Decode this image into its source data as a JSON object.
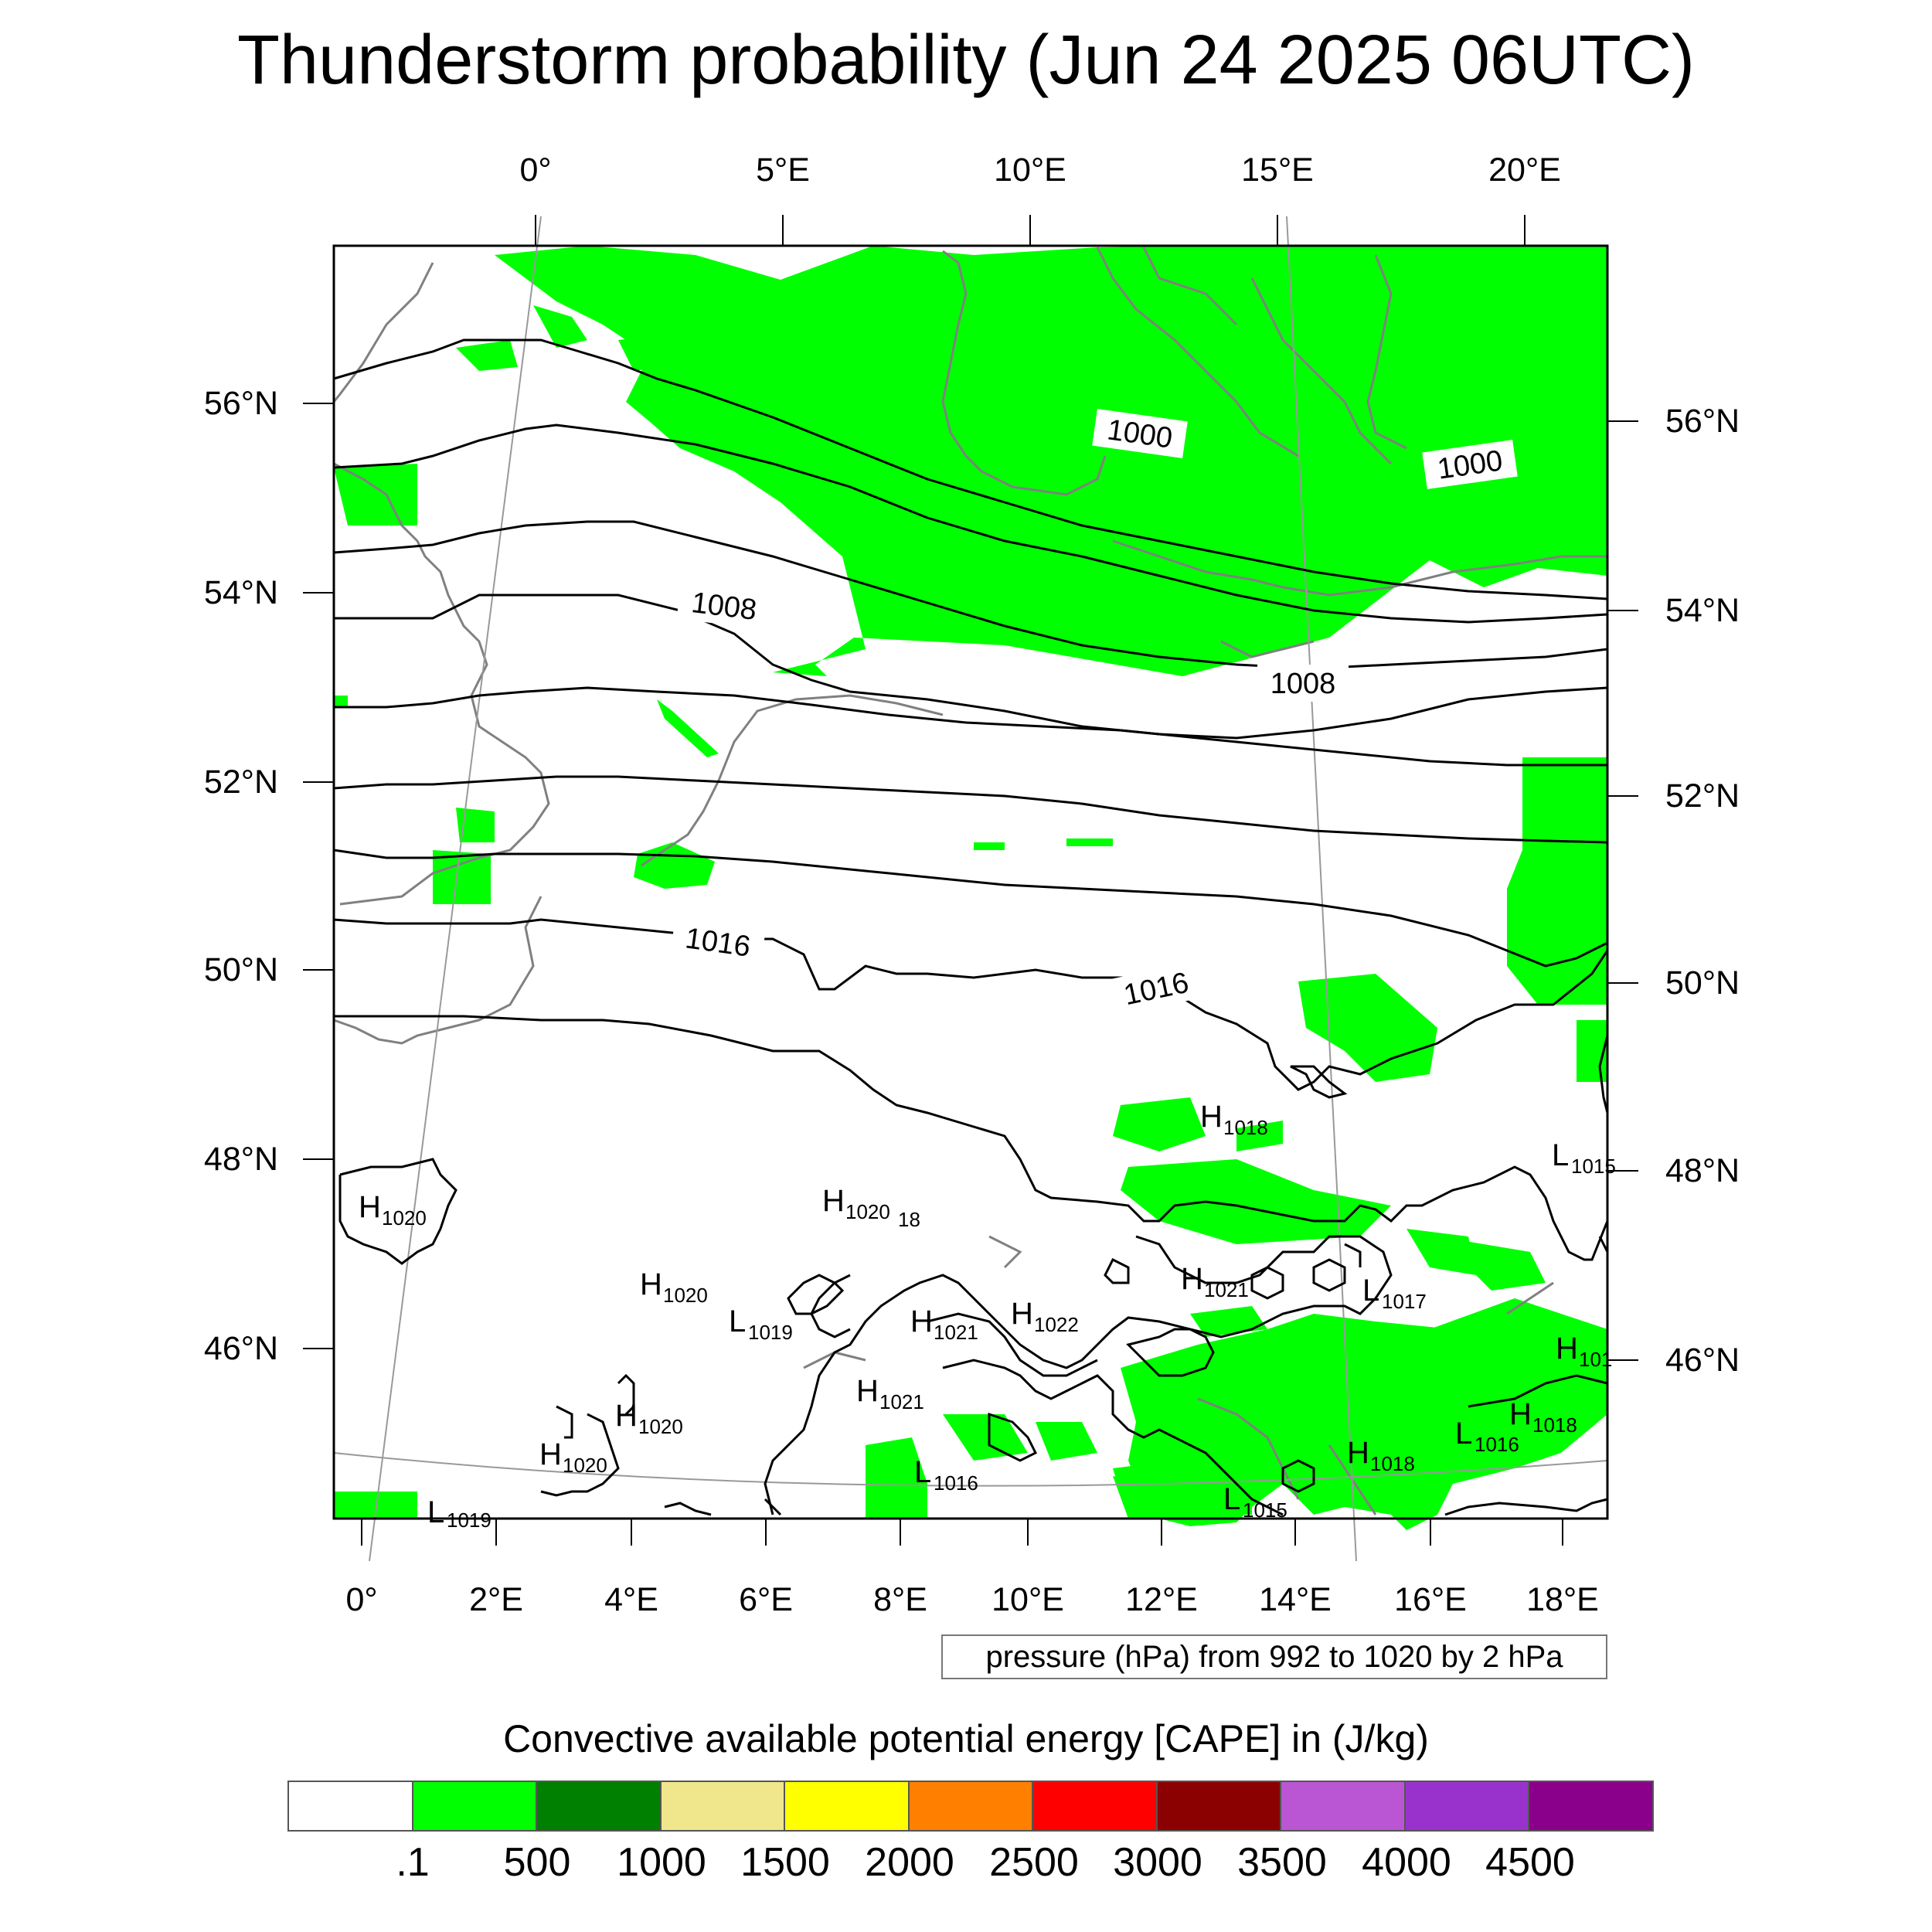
{
  "title": "Thunderstorm probability (Jun 24 2025 06UTC)",
  "top_lon_labels": [
    "0°",
    "5°E",
    "10°E",
    "15°E",
    "20°E"
  ],
  "bottom_lon_labels": [
    "0°",
    "2°E",
    "4°E",
    "6°E",
    "8°E",
    "10°E",
    "12°E",
    "14°E",
    "16°E",
    "18°E"
  ],
  "left_lat_labels": [
    "56°N",
    "54°N",
    "52°N",
    "50°N",
    "48°N",
    "46°N"
  ],
  "right_lat_labels": [
    "56°N",
    "54°N",
    "52°N",
    "50°N",
    "48°N",
    "46°N"
  ],
  "contour_labels": [
    "1000",
    "1000",
    "1008",
    "1008",
    "1016",
    "1016"
  ],
  "pressure_centers": [
    {
      "letter": "H",
      "value": "1020"
    },
    {
      "letter": "H",
      "value": "1020"
    },
    {
      "letter": "H",
      "value": "1020"
    },
    {
      "letter": "H",
      "value": "1020"
    },
    {
      "letter": "H",
      "value": "1020"
    },
    {
      "letter": "",
      "value": "18"
    },
    {
      "letter": "L",
      "value": "1019"
    },
    {
      "letter": "H",
      "value": "1021"
    },
    {
      "letter": "H",
      "value": "1022"
    },
    {
      "letter": "H",
      "value": "1021"
    },
    {
      "letter": "H",
      "value": "1021"
    },
    {
      "letter": "H",
      "value": "1018"
    },
    {
      "letter": "L",
      "value": "1017"
    },
    {
      "letter": "L",
      "value": "1015"
    },
    {
      "letter": "H",
      "value": "101"
    },
    {
      "letter": "L",
      "value": "1016"
    },
    {
      "letter": "H",
      "value": "1018"
    },
    {
      "letter": "L",
      "value": "1016"
    },
    {
      "letter": "H",
      "value": "1018"
    },
    {
      "letter": "L",
      "value": "1015"
    },
    {
      "letter": "L",
      "value": "1019"
    }
  ],
  "pressure_note": "pressure (hPa) from 992 to 1020 by 2 hPa",
  "colorbar": {
    "title": "Convective available potential energy [CAPE] in (J/kg)",
    "colors": [
      "#ffffff",
      "#00ff00",
      "#008000",
      "#f0e68c",
      "#ffff00",
      "#ff8000",
      "#ff0000",
      "#8b0000",
      "#ba55d3",
      "#9932cc",
      "#8b008b"
    ],
    "ticks": [
      ".1",
      "500",
      "1000",
      "1500",
      "2000",
      "2500",
      "3000",
      "3500",
      "4000",
      "4500"
    ]
  },
  "colors": {
    "cape_low": "#00ff00",
    "isobar": "#000000",
    "coastline": "#808080"
  }
}
